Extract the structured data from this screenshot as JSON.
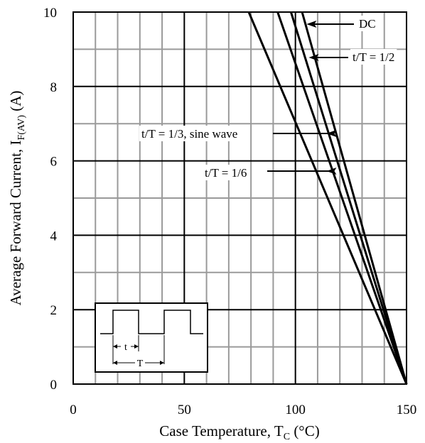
{
  "chart_data": {
    "type": "line",
    "title": "",
    "xlabel": "Case Temperature, T",
    "xlabel_sub": "C",
    "xlabel_unit": " (°C)",
    "ylabel": "Average Forward Current, I",
    "ylabel_sub": "F(AV)",
    "ylabel_unit": " (A)",
    "xlim": [
      0,
      150
    ],
    "ylim": [
      0,
      10
    ],
    "x_major_ticks": [
      0,
      50,
      100,
      150
    ],
    "y_major_ticks": [
      0,
      2,
      4,
      6,
      8,
      10
    ],
    "x_minor_step": 10,
    "y_minor_step": 1,
    "x_tick_labels": [
      "0",
      "50",
      "100",
      "150"
    ],
    "y_tick_labels": [
      "0",
      "2",
      "4",
      "6",
      "8",
      "10"
    ],
    "grid": true,
    "series": [
      {
        "name": "DC",
        "x": [
          103,
          150
        ],
        "y": [
          10,
          0
        ]
      },
      {
        "name": "t/T = 1/2",
        "x": [
          98,
          150
        ],
        "y": [
          10,
          0
        ]
      },
      {
        "name": "t/T = 1/3, sine wave",
        "x": [
          92,
          150
        ],
        "y": [
          10,
          0
        ]
      },
      {
        "name": "t/T = 1/6",
        "x": [
          79,
          150
        ],
        "y": [
          10,
          0
        ]
      }
    ],
    "annotations": [
      {
        "text": "DC",
        "tip_x": 105,
        "tip_y": 9.65
      },
      {
        "text": "t/T = 1/2",
        "tip_x": 106,
        "tip_y": 8.75
      },
      {
        "text": "t/T = 1/3, sine wave",
        "tip_x": 114,
        "tip_y": 6.75
      },
      {
        "text": "t/T = 1/6",
        "tip_x": 114,
        "tip_y": 5.75
      }
    ],
    "inset": {
      "t_label": "t",
      "T_label": "T"
    }
  }
}
